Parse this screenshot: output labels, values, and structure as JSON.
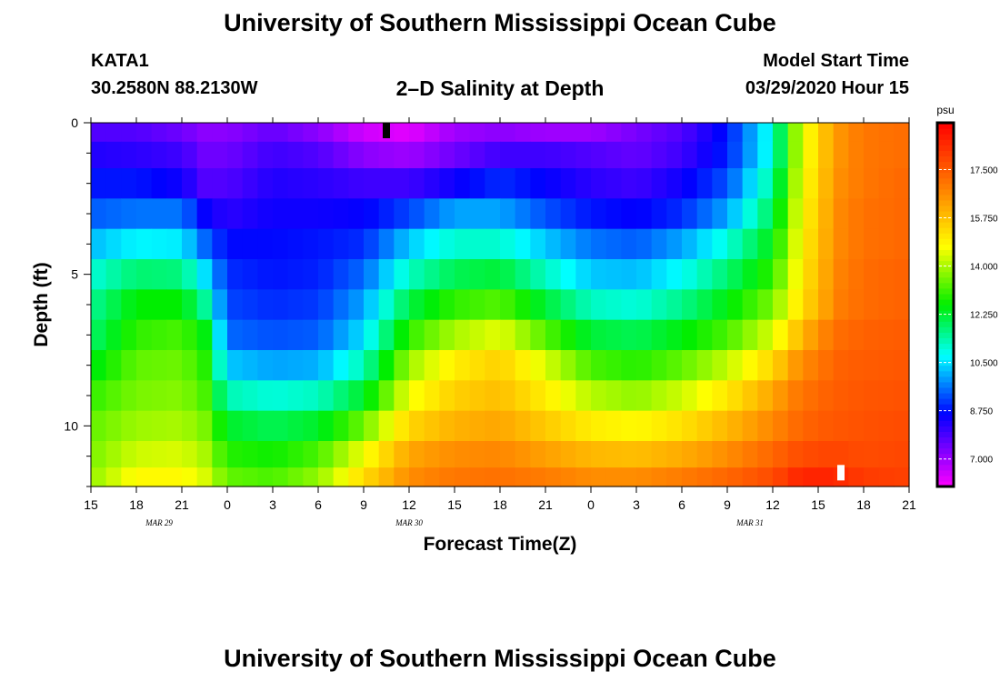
{
  "header": {
    "title": "University of Southern Mississippi Ocean Cube",
    "station_id": "KATA1",
    "station_coords": "30.2580N 88.2130W",
    "chart_title": "2–D Salinity at Depth",
    "model_start_label": "Model Start Time",
    "model_start_value": "03/29/2020 Hour 15"
  },
  "footer": {
    "title": "University of Southern Mississippi Ocean Cube"
  },
  "chart_data": {
    "type": "heatmap",
    "title": "2–D Salinity at Depth",
    "xlabel": "Forecast Time(Z)",
    "ylabel": "Depth (ft)",
    "units": "psu",
    "x_start_hour": 15,
    "x_range_hours": [
      0,
      54
    ],
    "x_tick_labels": [
      "15",
      "18",
      "21",
      "0",
      "3",
      "6",
      "9",
      "12",
      "15",
      "18",
      "21",
      "0",
      "3",
      "6",
      "9",
      "12",
      "15",
      "18",
      "21"
    ],
    "date_labels": [
      {
        "label": "MAR 29",
        "hour": 4.5
      },
      {
        "label": "MAR 30",
        "hour": 21
      },
      {
        "label": "MAR 31",
        "hour": 43.5
      }
    ],
    "y_range_ft": [
      0,
      12
    ],
    "y_tick_labels": [
      "0",
      "5",
      "10"
    ],
    "y_tick_values": [
      0,
      5,
      10
    ],
    "colorbar": {
      "min": 6.0,
      "max": 19.2,
      "tick_values": [
        7.0,
        8.75,
        10.5,
        12.25,
        14.0,
        15.75,
        17.5
      ],
      "tick_labels": [
        "7.000",
        "8.750",
        "10.500",
        "12.250",
        "14.000",
        "15.750",
        "17.500"
      ]
    },
    "depth_levels_ft": [
      0.25,
      1.0,
      2.0,
      3.0,
      4.0,
      5.0,
      6.0,
      7.0,
      8.0,
      9.0,
      10.0,
      11.0,
      11.75
    ],
    "time_key_hours": [
      0,
      3,
      6,
      7.5,
      9,
      12,
      15,
      18,
      21,
      24,
      27,
      30,
      33,
      36,
      39,
      42,
      45,
      46.5,
      48,
      49.5,
      51,
      54
    ],
    "salinity_profiles": [
      [
        7.8,
        7.8,
        7.5,
        7.2,
        7.2,
        7.6,
        7.2,
        6.5,
        6.3,
        7.0,
        7.2,
        7.0,
        7.0,
        7.4,
        7.8,
        8.8,
        11.0,
        13.8,
        15.5,
        16.5,
        17.0,
        17.2
      ],
      [
        8.3,
        8.2,
        8.0,
        7.5,
        7.5,
        8.0,
        7.8,
        7.2,
        7.0,
        7.5,
        8.0,
        8.0,
        7.8,
        7.6,
        8.0,
        8.9,
        11.0,
        13.8,
        15.5,
        16.5,
        17.0,
        17.2
      ],
      [
        8.8,
        8.8,
        8.5,
        7.8,
        7.8,
        8.3,
        8.2,
        8.0,
        8.0,
        8.5,
        9.0,
        8.6,
        8.2,
        8.0,
        8.5,
        9.3,
        11.5,
        14.0,
        15.6,
        16.6,
        17.0,
        17.3
      ],
      [
        9.4,
        9.6,
        9.6,
        8.6,
        8.2,
        8.5,
        8.5,
        8.6,
        9.2,
        10.0,
        10.0,
        9.3,
        8.8,
        8.6,
        9.0,
        10.0,
        12.0,
        14.2,
        15.7,
        16.7,
        17.1,
        17.3
      ],
      [
        10.2,
        10.7,
        10.6,
        9.5,
        8.7,
        8.7,
        8.8,
        9.0,
        10.3,
        11.1,
        11.1,
        10.3,
        9.6,
        9.4,
        10.0,
        11.0,
        12.5,
        14.4,
        15.8,
        16.7,
        17.1,
        17.3
      ],
      [
        11.0,
        11.8,
        11.7,
        10.5,
        9.0,
        8.8,
        8.9,
        9.5,
        11.2,
        12.0,
        12.2,
        11.2,
        10.3,
        10.2,
        10.8,
        11.8,
        13.0,
        14.6,
        15.9,
        16.8,
        17.2,
        17.4
      ],
      [
        11.5,
        12.6,
        12.6,
        11.5,
        9.2,
        9.0,
        9.1,
        10.0,
        12.1,
        13.0,
        13.3,
        12.2,
        11.2,
        11.0,
        11.6,
        12.5,
        13.6,
        14.9,
        16.0,
        16.9,
        17.2,
        17.4
      ],
      [
        11.8,
        13.0,
        13.2,
        12.5,
        9.5,
        9.3,
        9.4,
        10.5,
        13.0,
        14.0,
        14.5,
        13.3,
        12.2,
        12.0,
        12.5,
        13.2,
        14.4,
        15.6,
        16.6,
        17.2,
        17.4,
        17.5
      ],
      [
        12.4,
        13.4,
        13.5,
        12.9,
        10.3,
        10.0,
        10.1,
        11.3,
        13.9,
        15.0,
        15.5,
        14.4,
        13.2,
        12.9,
        13.4,
        14.2,
        15.4,
        16.4,
        17.0,
        17.4,
        17.5,
        17.6
      ],
      [
        13.0,
        13.6,
        13.7,
        13.2,
        11.3,
        11.0,
        11.2,
        12.3,
        14.6,
        15.5,
        15.8,
        15.0,
        14.1,
        13.8,
        14.3,
        15.1,
        16.2,
        16.9,
        17.3,
        17.5,
        17.6,
        17.7
      ],
      [
        13.4,
        13.9,
        14.0,
        13.6,
        12.3,
        12.0,
        12.3,
        13.5,
        15.4,
        16.0,
        16.2,
        15.6,
        15.0,
        14.8,
        15.2,
        15.9,
        16.7,
        17.2,
        17.5,
        17.6,
        17.7,
        17.8
      ],
      [
        13.6,
        14.3,
        14.4,
        14.0,
        12.9,
        12.7,
        13.2,
        14.6,
        16.2,
        16.6,
        16.7,
        16.3,
        15.9,
        15.8,
        16.1,
        16.6,
        17.3,
        17.7,
        17.9,
        17.9,
        17.8,
        17.9
      ],
      [
        13.8,
        14.8,
        14.8,
        14.4,
        13.4,
        13.2,
        13.8,
        15.3,
        16.6,
        17.0,
        17.1,
        16.9,
        16.6,
        16.6,
        16.9,
        17.3,
        17.8,
        18.4,
        18.6,
        18.4,
        18.1,
        18.0
      ]
    ],
    "markers": [
      {
        "name": "black-marker",
        "hour": 19.5,
        "depth_ft": 0.0,
        "color": "#000000"
      },
      {
        "name": "white-marker",
        "hour": 49.5,
        "depth_ft": 11.5,
        "color": "#ffffff"
      }
    ]
  }
}
